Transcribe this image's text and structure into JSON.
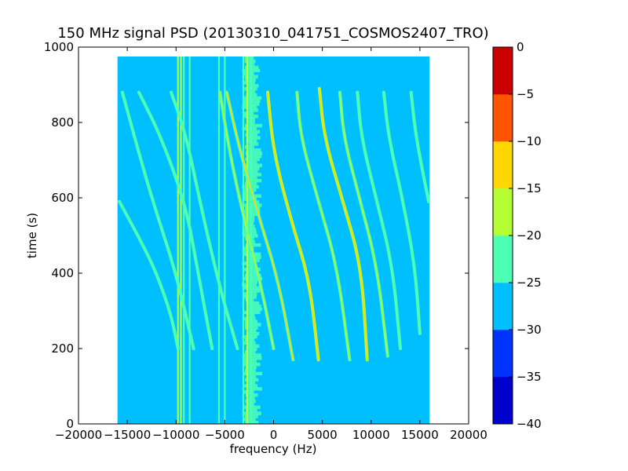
{
  "chart_data": {
    "type": "heatmap",
    "title": "150 MHz signal PSD (20130310_041751_COSMOS2407_TRO)",
    "xlabel": "frequency (Hz)",
    "ylabel": "time (s)",
    "xlim": [
      -20000,
      20000
    ],
    "ylim": [
      0,
      1000
    ],
    "x_ticks": [
      -20000,
      -15000,
      -10000,
      -5000,
      0,
      5000,
      10000,
      15000,
      20000
    ],
    "x_tick_labels": [
      "−20000",
      "−15000",
      "−10000",
      "−5000",
      "0",
      "5000",
      "10000",
      "15000",
      "20000"
    ],
    "y_ticks": [
      0,
      200,
      400,
      600,
      800,
      1000
    ],
    "y_tick_labels": [
      "0",
      "200",
      "400",
      "600",
      "800",
      "1000"
    ],
    "data_extent": {
      "x": [
        -16000,
        16000
      ],
      "y": [
        0,
        975
      ]
    },
    "background_level": -28,
    "colorbar": {
      "levels": [
        -40,
        -35,
        -30,
        -25,
        -20,
        -15,
        -10,
        -5,
        0
      ],
      "tick_labels": [
        "−40",
        "−35",
        "−30",
        "−25",
        "−20",
        "−15",
        "−10",
        "−5",
        "0"
      ],
      "colors": [
        "#0000cd",
        "#0033ff",
        "#00bfff",
        "#4dffb3",
        "#b3ff33",
        "#ffd700",
        "#ff5500",
        "#cc0000"
      ]
    },
    "vertical_lines": [
      {
        "x": -9800,
        "level": -20
      },
      {
        "x": -9500,
        "level": -18
      },
      {
        "x": -9200,
        "level": -22
      },
      {
        "x": -8600,
        "level": -22
      },
      {
        "x": -5600,
        "level": -22
      },
      {
        "x": -5000,
        "level": -22
      },
      {
        "x": -3100,
        "level": -22
      },
      {
        "x": -2700,
        "level": -20
      },
      {
        "x": -2300,
        "level": -22
      }
    ],
    "noise_band": {
      "x": [
        -3500,
        -1000
      ],
      "y": [
        0,
        975
      ],
      "level": -24
    },
    "drift_tracks": [
      {
        "x": [
          -15800,
          -13500,
          -12000,
          -10500,
          -9800
        ],
        "y": [
          590,
          480,
          400,
          290,
          200
        ],
        "level": -24
      },
      {
        "x": [
          -15500,
          -13500,
          -12000,
          -10000,
          -8200
        ],
        "y": [
          880,
          690,
          560,
          400,
          200
        ],
        "level": -23
      },
      {
        "x": [
          -13800,
          -11500,
          -9000,
          -7800,
          -6300
        ],
        "y": [
          880,
          760,
          580,
          410,
          200
        ],
        "level": -23
      },
      {
        "x": [
          -10500,
          -9000,
          -7300,
          -5500,
          -3700
        ],
        "y": [
          880,
          770,
          560,
          360,
          200
        ],
        "level": -23
      },
      {
        "x": [
          -5500,
          -4500,
          -3000,
          -1300,
          0
        ],
        "y": [
          880,
          720,
          540,
          370,
          200
        ],
        "level": -18
      },
      {
        "x": [
          -4800,
          -3500,
          -1500,
          500,
          2000
        ],
        "y": [
          880,
          730,
          550,
          380,
          170
        ],
        "level": -15
      },
      {
        "x": [
          -600,
          0,
          1800,
          3700,
          4600
        ],
        "y": [
          880,
          720,
          540,
          380,
          170
        ],
        "level": -12
      },
      {
        "x": [
          2400,
          2800,
          4500,
          6500,
          7800
        ],
        "y": [
          880,
          760,
          600,
          420,
          170
        ],
        "level": -16
      },
      {
        "x": [
          4700,
          5200,
          7000,
          9000,
          9600
        ],
        "y": [
          890,
          760,
          600,
          420,
          170
        ],
        "level": -14
      },
      {
        "x": [
          6800,
          7200,
          8800,
          10600,
          11700
        ],
        "y": [
          880,
          760,
          600,
          420,
          180
        ],
        "level": -20
      },
      {
        "x": [
          8600,
          9000,
          10500,
          12200,
          13000
        ],
        "y": [
          880,
          760,
          600,
          420,
          200
        ],
        "level": -22
      },
      {
        "x": [
          11300,
          11800,
          13200,
          14500,
          15000
        ],
        "y": [
          880,
          760,
          600,
          420,
          240
        ],
        "level": -23
      },
      {
        "x": [
          14100,
          14600,
          15900
        ],
        "y": [
          880,
          760,
          590
        ],
        "level": -23
      }
    ]
  }
}
